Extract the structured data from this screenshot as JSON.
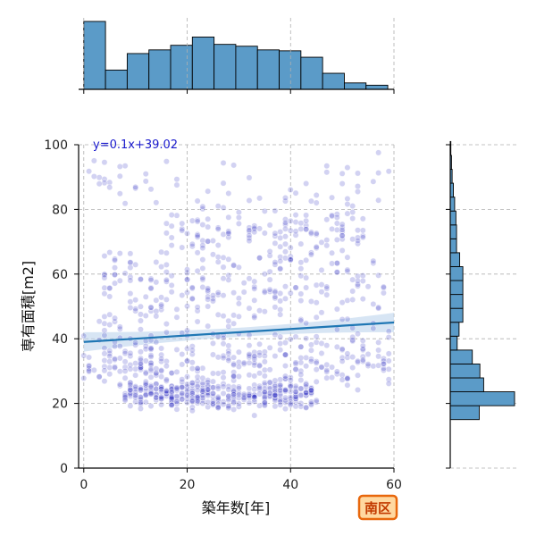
{
  "chart_data": {
    "type": "scatter",
    "title": "",
    "xlabel": "築年数[年]",
    "ylabel": "専有面積[m2]",
    "xlim": [
      -1,
      60
    ],
    "ylim": [
      0,
      100
    ],
    "xticks": [
      0,
      20,
      40,
      60
    ],
    "yticks": [
      0,
      20,
      40,
      60,
      80,
      100
    ],
    "grid": true,
    "point_color": "#2020c0",
    "line_color": "#1f77b4",
    "ci_color": "#bcd4ec",
    "bar_color": "#5b9bc8",
    "regression": {
      "label": "y=0.1x+39.02",
      "slope": 0.1,
      "intercept": 39.02,
      "ci_halfwidth_at_ends": 3,
      "ci_halfwidth_center": 1.4
    },
    "badge": "南区",
    "scatter_seed": 7,
    "scatter_point_count": 1100,
    "scatter_point_opacity": 0.2,
    "scatter_clusters": [
      {
        "weight": 0.34,
        "x_range": [
          8,
          45
        ],
        "y_mean": 23,
        "y_sd": 3
      },
      {
        "weight": 0.26,
        "x_range": [
          0,
          60
        ],
        "y_mean": 33,
        "y_sd": 6
      },
      {
        "weight": 0.22,
        "x_range": [
          3,
          58
        ],
        "y_mean": 55,
        "y_sd": 10
      },
      {
        "weight": 0.13,
        "x_range": [
          15,
          55
        ],
        "y_mean": 72,
        "y_sd": 7
      },
      {
        "weight": 0.05,
        "x_range": [
          0,
          60
        ],
        "y_mean": 88,
        "y_sd": 6
      }
    ],
    "x_histogram": {
      "bin_width": 4.2,
      "bin_start": 0,
      "counts": [
        148,
        42,
        78,
        86,
        96,
        114,
        98,
        94,
        86,
        84,
        70,
        35,
        14,
        9
      ]
    },
    "y_histogram": {
      "bin_width": 4.3,
      "bin_start": 15,
      "counts": [
        46,
        102,
        53,
        47,
        35,
        11,
        14,
        20,
        20,
        20,
        20,
        15,
        10,
        10,
        9,
        7,
        5,
        3,
        2,
        1
      ]
    }
  }
}
